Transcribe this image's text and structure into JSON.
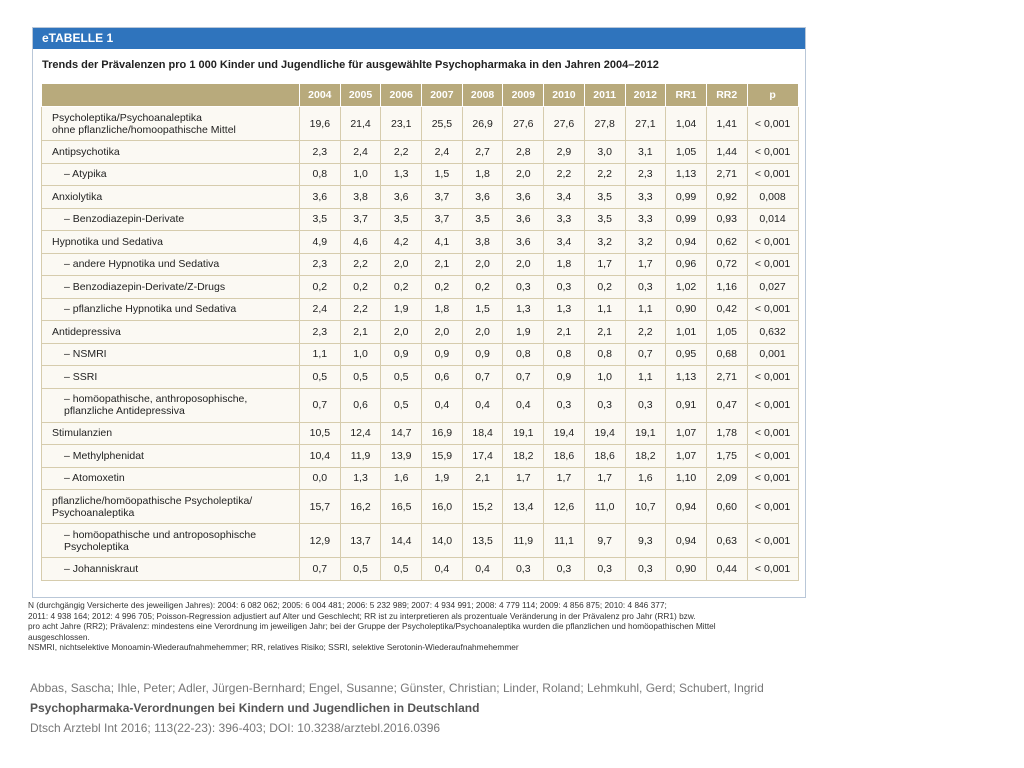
{
  "header": {
    "tag": "eTABELLE 1",
    "title": "Trends der Prävalenzen pro 1 000 Kinder und Jugendliche für ausgewählte Psychopharmaka in den Jahren 2004–2012"
  },
  "table": {
    "columns": [
      "",
      "2004",
      "2005",
      "2006",
      "2007",
      "2008",
      "2009",
      "2010",
      "2011",
      "2012",
      "RR1",
      "RR2",
      "p"
    ],
    "rows": [
      {
        "label": [
          "Psycholeptika/Psychoanaleptika",
          "ohne pflanzliche/homoopathische Mittel"
        ],
        "cells": [
          "19,6",
          "21,4",
          "23,1",
          "25,5",
          "26,9",
          "27,6",
          "27,6",
          "27,8",
          "27,1",
          "1,04",
          "1,41",
          "< 0,001"
        ]
      },
      {
        "label": [
          "Antipsychotika"
        ],
        "cells": [
          "2,3",
          "2,4",
          "2,2",
          "2,4",
          "2,7",
          "2,8",
          "2,9",
          "3,0",
          "3,1",
          "1,05",
          "1,44",
          "< 0,001"
        ]
      },
      {
        "label": [
          "– Atypika"
        ],
        "cells": [
          "0,8",
          "1,0",
          "1,3",
          "1,5",
          "1,8",
          "2,0",
          "2,2",
          "2,2",
          "2,3",
          "1,13",
          "2,71",
          "< 0,001"
        ]
      },
      {
        "label": [
          "Anxiolytika"
        ],
        "cells": [
          "3,6",
          "3,8",
          "3,6",
          "3,7",
          "3,6",
          "3,6",
          "3,4",
          "3,5",
          "3,3",
          "0,99",
          "0,92",
          "0,008"
        ]
      },
      {
        "label": [
          "– Benzodiazepin-Derivate"
        ],
        "cells": [
          "3,5",
          "3,7",
          "3,5",
          "3,7",
          "3,5",
          "3,6",
          "3,3",
          "3,5",
          "3,3",
          "0,99",
          "0,93",
          "0,014"
        ]
      },
      {
        "label": [
          "Hypnotika und Sedativa"
        ],
        "cells": [
          "4,9",
          "4,6",
          "4,2",
          "4,1",
          "3,8",
          "3,6",
          "3,4",
          "3,2",
          "3,2",
          "0,94",
          "0,62",
          "< 0,001"
        ]
      },
      {
        "label": [
          "– andere Hypnotika und Sedativa"
        ],
        "cells": [
          "2,3",
          "2,2",
          "2,0",
          "2,1",
          "2,0",
          "2,0",
          "1,8",
          "1,7",
          "1,7",
          "0,96",
          "0,72",
          "< 0,001"
        ]
      },
      {
        "label": [
          "– Benzodiazepin-Derivate/Z-Drugs"
        ],
        "cells": [
          "0,2",
          "0,2",
          "0,2",
          "0,2",
          "0,2",
          "0,3",
          "0,3",
          "0,2",
          "0,3",
          "1,02",
          "1,16",
          "0,027"
        ]
      },
      {
        "label": [
          "– pflanzliche Hypnotika und Sedativa"
        ],
        "cells": [
          "2,4",
          "2,2",
          "1,9",
          "1,8",
          "1,5",
          "1,3",
          "1,3",
          "1,1",
          "1,1",
          "0,90",
          "0,42",
          "< 0,001"
        ]
      },
      {
        "label": [
          "Antidepressiva"
        ],
        "cells": [
          "2,3",
          "2,1",
          "2,0",
          "2,0",
          "2,0",
          "1,9",
          "2,1",
          "2,1",
          "2,2",
          "1,01",
          "1,05",
          "0,632"
        ]
      },
      {
        "label": [
          "– NSMRI"
        ],
        "cells": [
          "1,1",
          "1,0",
          "0,9",
          "0,9",
          "0,9",
          "0,8",
          "0,8",
          "0,8",
          "0,7",
          "0,95",
          "0,68",
          "0,001"
        ]
      },
      {
        "label": [
          "– SSRI"
        ],
        "cells": [
          "0,5",
          "0,5",
          "0,5",
          "0,6",
          "0,7",
          "0,7",
          "0,9",
          "1,0",
          "1,1",
          "1,13",
          "2,71",
          "< 0,001"
        ]
      },
      {
        "label": [
          "– homöopathische, anthroposophische,",
          "pflanzliche Antidepressiva"
        ],
        "cells": [
          "0,7",
          "0,6",
          "0,5",
          "0,4",
          "0,4",
          "0,4",
          "0,3",
          "0,3",
          "0,3",
          "0,91",
          "0,47",
          "< 0,001"
        ]
      },
      {
        "label": [
          "Stimulanzien"
        ],
        "cells": [
          "10,5",
          "12,4",
          "14,7",
          "16,9",
          "18,4",
          "19,1",
          "19,4",
          "19,4",
          "19,1",
          "1,07",
          "1,78",
          "< 0,001"
        ]
      },
      {
        "label": [
          "– Methylphenidat"
        ],
        "cells": [
          "10,4",
          "11,9",
          "13,9",
          "15,9",
          "17,4",
          "18,2",
          "18,6",
          "18,6",
          "18,2",
          "1,07",
          "1,75",
          "< 0,001"
        ]
      },
      {
        "label": [
          "– Atomoxetin"
        ],
        "cells": [
          "0,0",
          "1,3",
          "1,6",
          "1,9",
          "2,1",
          "1,7",
          "1,7",
          "1,7",
          "1,6",
          "1,10",
          "2,09",
          "< 0,001"
        ]
      },
      {
        "label": [
          "pflanzliche/homöopathische Psycholeptika/",
          "Psychoanaleptika"
        ],
        "cells": [
          "15,7",
          "16,2",
          "16,5",
          "16,0",
          "15,2",
          "13,4",
          "12,6",
          "11,0",
          "10,7",
          "0,94",
          "0,60",
          "< 0,001"
        ]
      },
      {
        "label": [
          "– homöopathische und antroposophische",
          "Psycholeptika"
        ],
        "cells": [
          "12,9",
          "13,7",
          "14,4",
          "14,0",
          "13,5",
          "11,9",
          "11,1",
          "9,7",
          "9,3",
          "0,94",
          "0,63",
          "< 0,001"
        ]
      },
      {
        "label": [
          "– Johanniskraut"
        ],
        "cells": [
          "0,7",
          "0,5",
          "0,5",
          "0,4",
          "0,4",
          "0,3",
          "0,3",
          "0,3",
          "0,3",
          "0,90",
          "0,44",
          "< 0,001"
        ]
      }
    ]
  },
  "footnotes": [
    "N (durchgängig Versicherte des jeweiligen Jahres): 2004: 6 082 062; 2005: 6 004 481; 2006: 5 232 989; 2007: 4 934 991; 2008: 4 779 114; 2009: 4 856 875; 2010: 4 846 377;",
    "2011: 4 938 164; 2012: 4 996 705; Poisson-Regression adjustiert auf Alter und Geschlecht; RR ist zu interpretieren als prozentuale Veränderung in der Prävalenz pro Jahr (RR1) bzw.",
    "pro acht Jahre (RR2); Prävalenz: mindestens eine Verordnung im jeweiligen Jahr; bei der Gruppe der Psycholeptika/Psychoanaleptika wurden die pflanzlichen und homöopathischen Mittel",
    "ausgeschlossen.",
    "NSMRI, nichtselektive Monoamin-Wiederaufnahmehemmer; RR, relatives Risiko; SSRI, selektive Serotonin-Wiederaufnahmehemmer"
  ],
  "citation": {
    "authors": "Abbas, Sascha; Ihle, Peter; Adler, Jürgen-Bernhard; Engel, Susanne; Günster, Christian; Linder, Roland; Lehmkuhl, Gerd; Schubert, Ingrid",
    "title": "Psychopharmaka-Verordnungen bei Kindern und Jugendlichen in Deutschland",
    "source": "Dtsch Arztebl Int 2016; 113(22-23): 396-403; DOI: 10.3238/arztebl.2016.0396"
  }
}
